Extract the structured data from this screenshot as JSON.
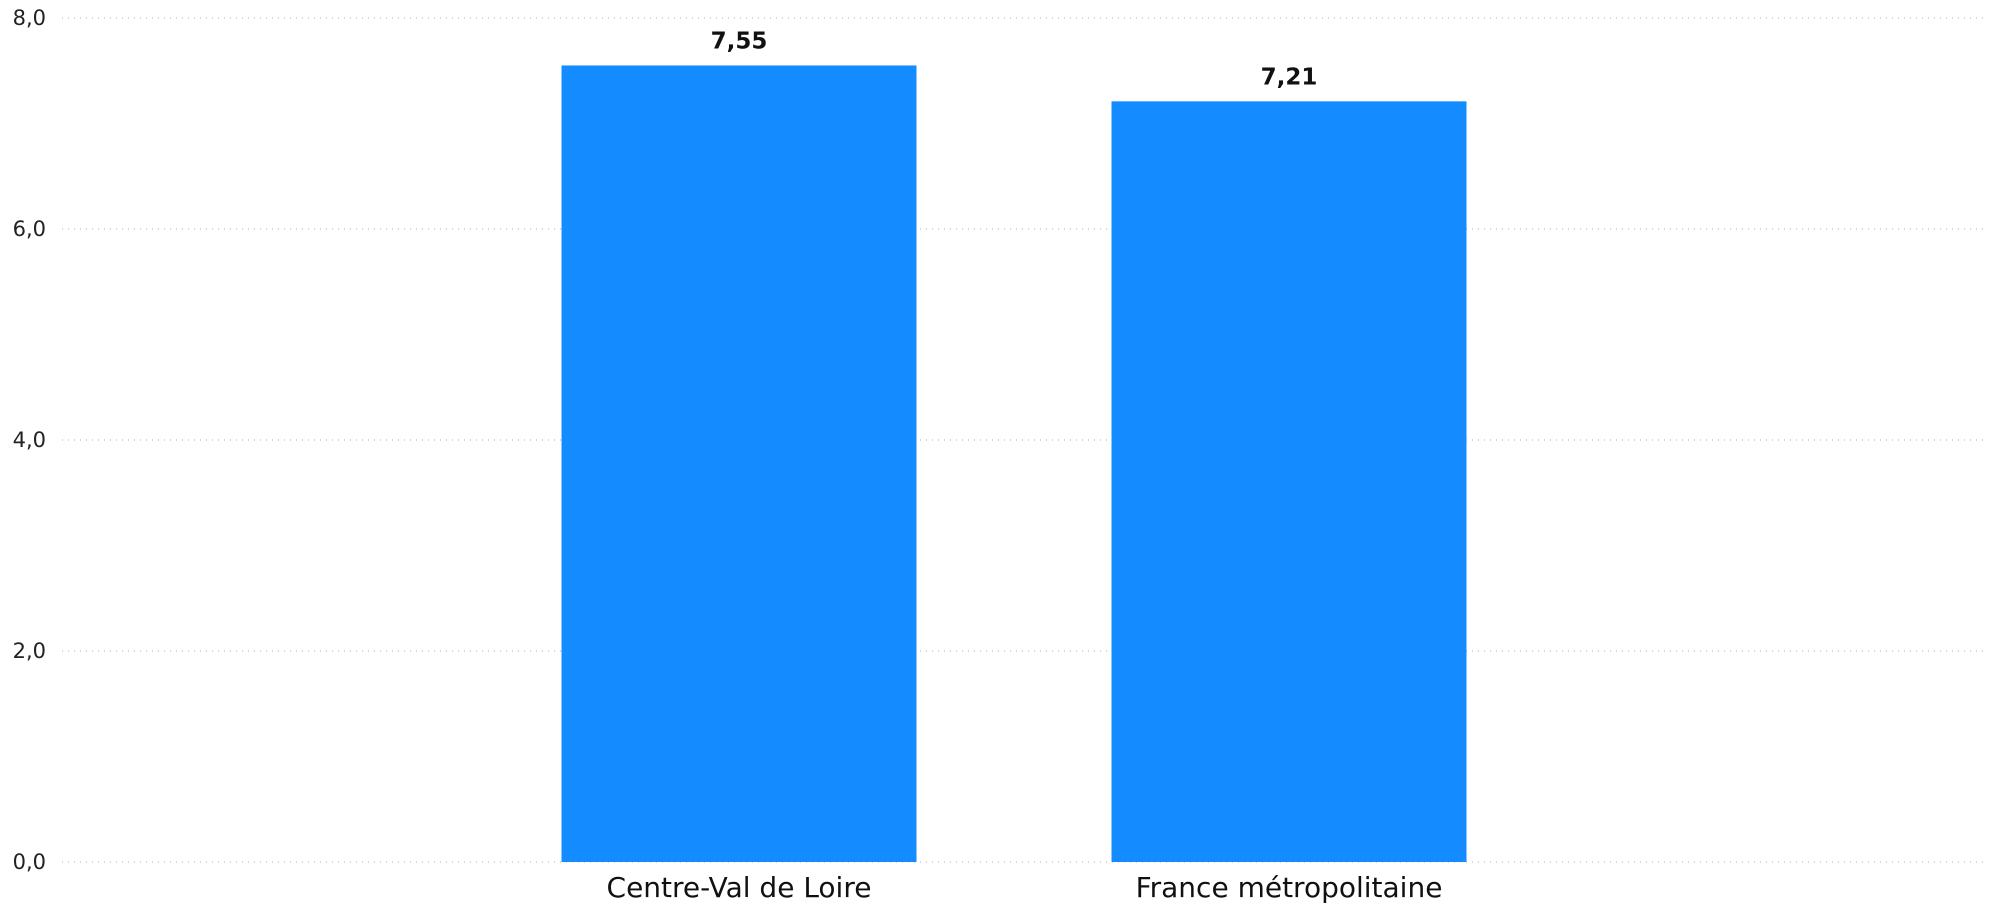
{
  "chart_data": {
    "type": "bar",
    "categories": [
      "Centre-Val de Loire",
      "France métropolitaine"
    ],
    "values": [
      7.55,
      7.21
    ],
    "data_labels": [
      "7,55",
      "7,21"
    ],
    "ylim": [
      0,
      8
    ],
    "yticks": [
      0,
      2,
      4,
      6,
      8
    ],
    "ytick_labels": [
      "0,0",
      "2,0",
      "4,0",
      "6,0",
      "8,0"
    ],
    "bar_color": "#148CFF",
    "grid": true
  }
}
